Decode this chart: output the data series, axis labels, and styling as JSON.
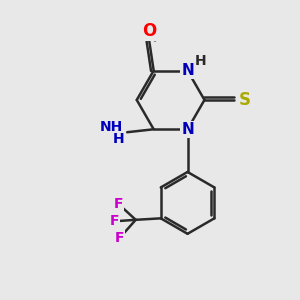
{
  "bg_color": "#e8e8e8",
  "bond_color": "#2a2a2a",
  "bond_width": 1.8,
  "atom_colors": {
    "O": "#ff0000",
    "N": "#0000bb",
    "S": "#aaaa00",
    "F": "#cc00cc",
    "H": "#2a2a2a",
    "C": "#2a2a2a"
  },
  "font_size": 10,
  "fig_size": [
    3.0,
    3.0
  ],
  "dpi": 100
}
